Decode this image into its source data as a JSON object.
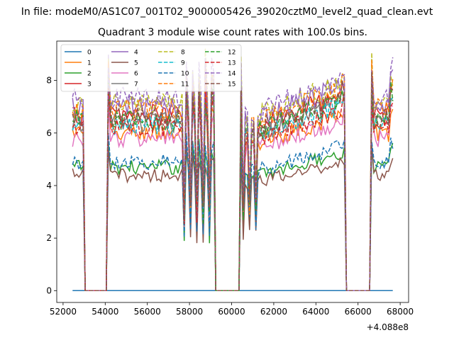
{
  "chart_data": {
    "type": "line",
    "suptitle": "In file: modeM0/AS1C07_001T02_9000005426_39020cztM0_level2_quad_clean.evt",
    "title": "Quadrant 3 module wise count rates with 100.0s bins.",
    "xlabel": "",
    "ylabel": "",
    "x_offset_label": "+4.088e8",
    "xlim": [
      51700,
      68400
    ],
    "ylim": [
      -0.45,
      9.5
    ],
    "xticks": [
      52000,
      54000,
      56000,
      58000,
      60000,
      62000,
      64000,
      66000,
      68000
    ],
    "xtick_labels": [
      "52000",
      "54000",
      "56000",
      "58000",
      "60000",
      "62000",
      "64000",
      "66000",
      "68000"
    ],
    "yticks": [
      0,
      2,
      4,
      6,
      8
    ],
    "ytick_labels": [
      "0",
      "2",
      "4",
      "6",
      "8"
    ],
    "legend": {
      "placement": "top-left",
      "columns": 4
    },
    "x_start": 52450,
    "x_step": 100,
    "segments": [
      {
        "range": [
          52450,
          52950
        ],
        "state": "on"
      },
      {
        "range": [
          52950,
          54050
        ],
        "state": "off"
      },
      {
        "range": [
          54050,
          59150
        ],
        "state": "on"
      },
      {
        "range": [
          59150,
          60350
        ],
        "state": "off"
      },
      {
        "range": [
          60350,
          65350
        ],
        "state": "on"
      },
      {
        "range": [
          65350,
          66550
        ],
        "state": "off"
      },
      {
        "range": [
          66550,
          67650
        ],
        "state": "on"
      }
    ],
    "series": [
      {
        "name": "0",
        "color": "#1f77b4",
        "dash": "solid",
        "level": 0.0
      },
      {
        "name": "1",
        "color": "#ff7f0e",
        "dash": "solid",
        "level": 6.0
      },
      {
        "name": "2",
        "color": "#2ca02c",
        "dash": "solid",
        "level": 4.7
      },
      {
        "name": "3",
        "color": "#d62728",
        "dash": "solid",
        "level": 6.7
      },
      {
        "name": "4",
        "color": "#9467bd",
        "dash": "solid",
        "level": 7.0
      },
      {
        "name": "5",
        "color": "#8c564b",
        "dash": "solid",
        "level": 4.4
      },
      {
        "name": "6",
        "color": "#e377c2",
        "dash": "solid",
        "level": 5.8
      },
      {
        "name": "7",
        "color": "#7f7f7f",
        "dash": "solid",
        "level": 6.4
      },
      {
        "name": "8",
        "color": "#bcbd22",
        "dash": "dashed",
        "level": 7.1
      },
      {
        "name": "9",
        "color": "#17becf",
        "dash": "dashed",
        "level": 6.3
      },
      {
        "name": "10",
        "color": "#1f77b4",
        "dash": "dashed",
        "level": 4.9
      },
      {
        "name": "11",
        "color": "#ff7f0e",
        "dash": "dashed",
        "level": 6.9
      },
      {
        "name": "12",
        "color": "#2ca02c",
        "dash": "dashed",
        "level": 6.5
      },
      {
        "name": "13",
        "color": "#d62728",
        "dash": "dashed",
        "level": 6.2
      },
      {
        "name": "14",
        "color": "#9467bd",
        "dash": "dashed",
        "level": 7.3
      },
      {
        "name": "15",
        "color": "#8c564b",
        "dash": "dashed",
        "level": 6.6
      }
    ]
  }
}
